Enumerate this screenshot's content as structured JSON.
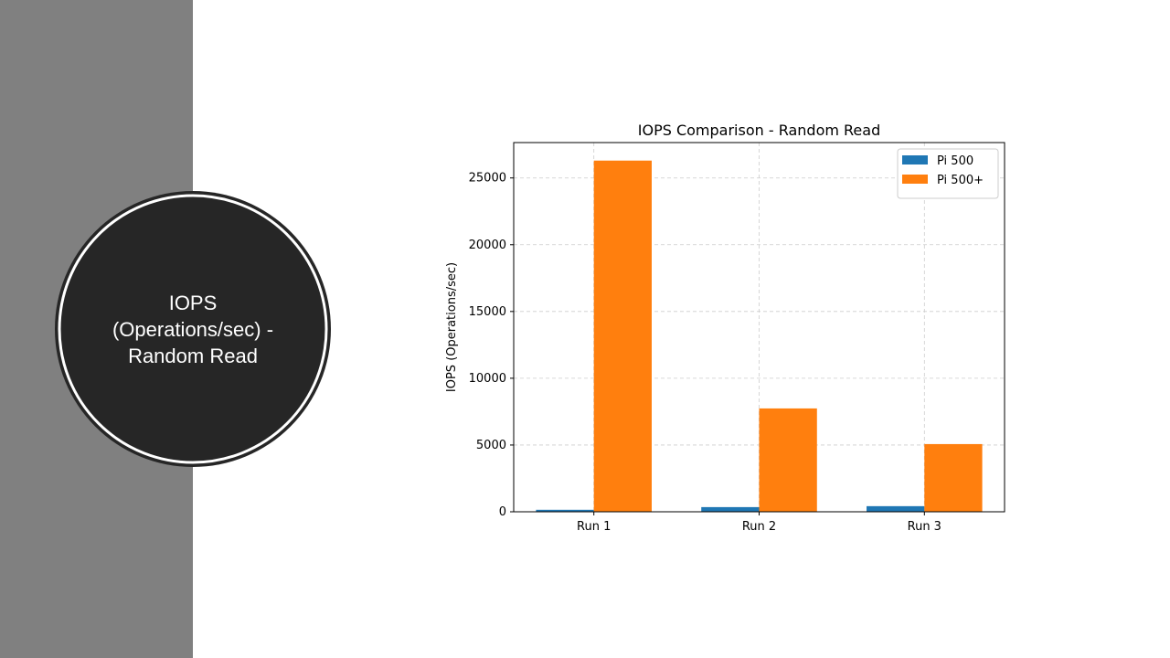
{
  "slide": {
    "title": "IOPS (Operations/sec) - Random Read"
  },
  "chart_data": {
    "type": "bar",
    "title": "IOPS Comparison - Random Read",
    "y_label": "IOPS (Operations/sec)",
    "categories": [
      "Run 1",
      "Run 2",
      "Run 3"
    ],
    "series": [
      {
        "name": "Pi 500",
        "color": "#1f77b4",
        "values": [
          150,
          350,
          420
        ]
      },
      {
        "name": "Pi 500+",
        "color": "#ff7f0e",
        "values": [
          26300,
          7740,
          5070
        ]
      }
    ],
    "ylim": [
      0,
      27650
    ],
    "yticks": [
      0,
      5000,
      10000,
      15000,
      20000,
      25000
    ],
    "grid": true,
    "legend": "upper right"
  }
}
